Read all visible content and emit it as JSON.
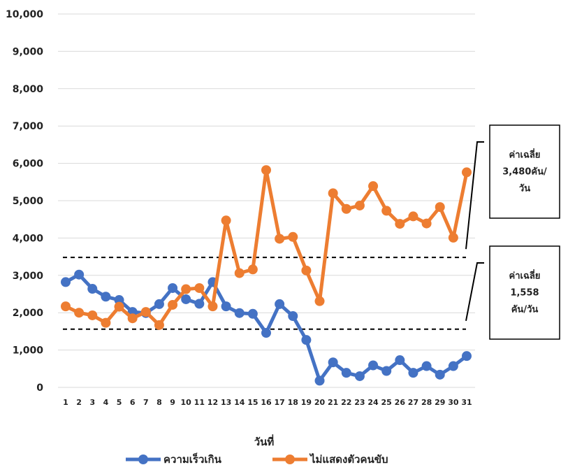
{
  "chart_data": {
    "type": "line",
    "title": "",
    "xlabel": "วันที่",
    "ylabel": "",
    "ylim": [
      0,
      10000
    ],
    "yticks": [
      "0",
      "1,000",
      "2,000",
      "3,000",
      "4,000",
      "5,000",
      "6,000",
      "7,000",
      "8,000",
      "9,000",
      "10,000"
    ],
    "categories": [
      "1",
      "2",
      "3",
      "4",
      "5",
      "6",
      "7",
      "8",
      "9",
      "10",
      "11",
      "12",
      "13",
      "14",
      "15",
      "16",
      "17",
      "18",
      "19",
      "20",
      "21",
      "22",
      "23",
      "24",
      "25",
      "26",
      "27",
      "28",
      "29",
      "30",
      "31"
    ],
    "grid": true,
    "legend": "bottom",
    "series": [
      {
        "name": "ความเร็วเกิน",
        "color": "#4472C4",
        "values": [
          2820,
          3020,
          2640,
          2430,
          2340,
          2020,
          1990,
          2230,
          2660,
          2360,
          2240,
          2820,
          2170,
          1990,
          1970,
          1460,
          2230,
          1910,
          1270,
          180,
          670,
          390,
          300,
          590,
          440,
          730,
          390,
          570,
          340,
          570,
          840
        ]
      },
      {
        "name": "ไม่แสดงตัวคนขับ",
        "color": "#ED7D31",
        "values": [
          2170,
          2000,
          1930,
          1730,
          2160,
          1850,
          2020,
          1670,
          2210,
          2630,
          2660,
          2170,
          4470,
          3060,
          3160,
          5820,
          3980,
          4030,
          3130,
          2310,
          5200,
          4780,
          4870,
          5390,
          4730,
          4380,
          4580,
          4390,
          4830,
          4010,
          5760
        ]
      }
    ],
    "reference_lines": [
      {
        "value": 3480,
        "style": "dashed",
        "label": [
          "ค่าเฉลี่ย",
          "3,480คัน/",
          "วัน"
        ]
      },
      {
        "value": 1558,
        "style": "dashed",
        "label": [
          "ค่าเฉลี่ย",
          "1,558",
          "คัน/วัน"
        ]
      }
    ]
  }
}
